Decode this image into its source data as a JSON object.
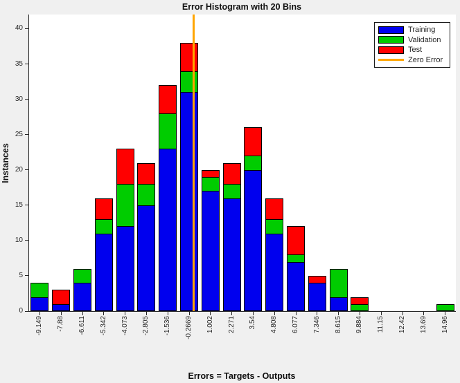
{
  "figure": {
    "background": "#F0F0F0",
    "plot_background": "#FFFFFF",
    "axis_color": "#262626",
    "bar_edge_color": "#000000"
  },
  "chart_data": {
    "type": "bar",
    "stacked": true,
    "title": "Error Histogram with 20 Bins",
    "xlabel": "Errors = Targets - Outputs",
    "ylabel": "Instances",
    "ylim": [
      0,
      42
    ],
    "yticks": [
      0,
      5,
      10,
      15,
      20,
      25,
      30,
      35,
      40
    ],
    "grid": false,
    "legend_position": "top-right",
    "categories": [
      "-9.149",
      "-7.88",
      "-6.611",
      "-5.342",
      "-4.073",
      "-2.805",
      "-1.536",
      "-0.2669",
      "1.002",
      "2.271",
      "3.54",
      "4.808",
      "6.077",
      "7.346",
      "8.615",
      "9.884",
      "11.15",
      "12.42",
      "13.69",
      "14.96"
    ],
    "series": [
      {
        "name": "Training",
        "color": "#0000EE",
        "values": [
          2,
          1,
          4,
          11,
          12,
          15,
          23,
          31,
          17,
          16,
          20,
          11,
          7,
          4,
          2,
          0,
          0,
          0,
          0,
          0
        ]
      },
      {
        "name": "Validation",
        "color": "#00CC00",
        "values": [
          2,
          0,
          2,
          2,
          6,
          3,
          5,
          3,
          2,
          2,
          2,
          2,
          1,
          0,
          4,
          1,
          0,
          0,
          0,
          1
        ]
      },
      {
        "name": "Test",
        "color": "#FF0000",
        "values": [
          0,
          2,
          0,
          3,
          5,
          3,
          4,
          4,
          1,
          3,
          4,
          3,
          4,
          1,
          0,
          1,
          0,
          0,
          0,
          0
        ]
      }
    ],
    "zero_error_line": {
      "label": "Zero Error",
      "color": "#FFA500",
      "x_value": 0
    }
  },
  "legend": {
    "entries": [
      {
        "label": "Training",
        "color": "#0000EE",
        "swatch": "box"
      },
      {
        "label": "Validation",
        "color": "#00CC00",
        "swatch": "box"
      },
      {
        "label": "Test",
        "color": "#FF0000",
        "swatch": "box"
      },
      {
        "label": "Zero Error",
        "color": "#FFA500",
        "swatch": "line"
      }
    ]
  }
}
